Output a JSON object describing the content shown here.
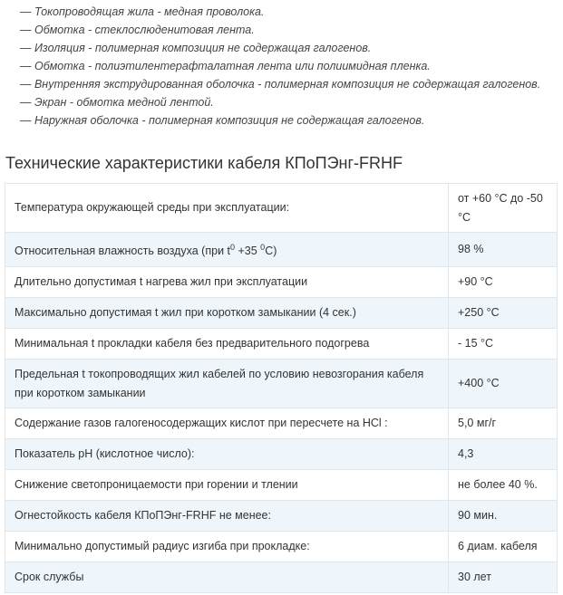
{
  "list": [
    "— Токопроводящая жила - медная проволока.",
    "— Обмотка - стеклослюденитовая лента.",
    "— Изоляция - полимерная композиция не содержащая галогенов.",
    "— Обмотка - полиэтилентерафталатная лента или полиимидная пленка.",
    "— Внутренняя экструдированная оболочка - полимерная композиция не содержащая галогенов.",
    "— Экран - обмотка медной лентой.",
    "— Наружная оболочка - полимерная композиция не содержащая галогенов."
  ],
  "heading": "Технические характеристики кабеля КПоПЭнг-FRHF",
  "table": {
    "rows": [
      {
        "name": "Температура окружающей среды при эксплуатации:",
        "value": "от +60 °С до -50 °С"
      },
      {
        "name_parts": [
          "Относительная влажность воздуха (при t",
          "0",
          " +35 ",
          "0",
          "С)"
        ],
        "value": "98 %"
      },
      {
        "name": "Длительно допустимая t нагрева жил при эксплуатации",
        "value": "+90 °С"
      },
      {
        "name": "Максимально допустимая t жил при коротком замыкании (4 сек.)",
        "value": "+250 °С"
      },
      {
        "name": "Минимальная t прокладки кабеля без предварительного подогрева",
        "value": "- 15 °С"
      },
      {
        "name": "Предельная t токопроводящих жил кабелей по условию невозгорания кабеля при коротком замыкании",
        "value": "+400 °С"
      },
      {
        "name": "Содержание газов галогеносодержащих кислот при пересчете на HCl :",
        "value": "5,0 мг/г"
      },
      {
        "name": "Показатель pH (кислотное число):",
        "value": "4,3"
      },
      {
        "name": "Снижение светопроницаемости при горении и тлении",
        "value": "не более 40 %."
      },
      {
        "name": "Огнестойкость кабеля КПоПЭнг-FRHF не менее:",
        "value": "90 мин."
      },
      {
        "name": "Минимально допустимый радиус изгиба при прокладке:",
        "value": "6 диам. кабеля"
      },
      {
        "name": "Срок службы",
        "value": "30 лет"
      }
    ]
  }
}
